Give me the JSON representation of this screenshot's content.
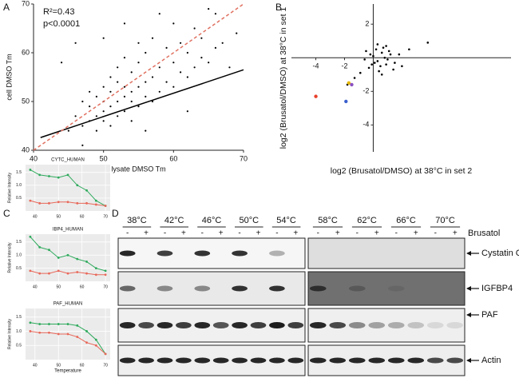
{
  "panel_labels": [
    "A",
    "B",
    "C",
    "D"
  ],
  "chart_data": [
    {
      "type": "scatter",
      "annotations": [
        "R²=0.43",
        "p<0.0001"
      ],
      "x_label": "lysate DMSO Tm",
      "y_label": "cell DMSO Tm",
      "xlim": [
        40,
        70
      ],
      "ylim": [
        40,
        70
      ],
      "xticks": [
        40,
        50,
        60,
        70
      ],
      "yticks": [
        40,
        50,
        60,
        70
      ],
      "series": [
        {
          "color": "#000000",
          "x": [
            45,
            46,
            47,
            47,
            48,
            48,
            48,
            49,
            49,
            49,
            50,
            50,
            50,
            50,
            51,
            51,
            51,
            51,
            52,
            52,
            52,
            52,
            53,
            53,
            53,
            53,
            54,
            54,
            54,
            54,
            55,
            55,
            55,
            55,
            56,
            56,
            56,
            57,
            57,
            57,
            58,
            58,
            59,
            59,
            60,
            60,
            60,
            61,
            61,
            62,
            62,
            63,
            63,
            64,
            64,
            65,
            66,
            66,
            67,
            68,
            69,
            44,
            46,
            50,
            53,
            47,
            56,
            62,
            65,
            58
          ],
          "values": [
            44,
            47,
            45,
            50,
            46,
            49,
            52,
            44,
            47,
            51,
            46,
            48,
            50,
            53,
            45,
            49,
            52,
            55,
            47,
            50,
            54,
            57,
            48,
            51,
            53,
            59,
            46,
            50,
            52,
            56,
            49,
            53,
            58,
            62,
            51,
            54,
            60,
            50,
            55,
            63,
            52,
            57,
            54,
            61,
            53,
            58,
            66,
            56,
            62,
            55,
            60,
            57,
            65,
            59,
            63,
            58,
            61,
            68,
            62,
            57,
            64,
            58,
            62,
            63,
            66,
            41,
            44,
            48,
            69,
            68
          ]
        }
      ],
      "fit_line": {
        "x": [
          41,
          70
        ],
        "y": [
          42.6,
          56.5
        ],
        "color": "#000000"
      },
      "identity_line": {
        "x": [
          40,
          70
        ],
        "y": [
          40,
          70
        ],
        "color": "#e07060",
        "dashed": true
      }
    },
    {
      "type": "scatter",
      "x_label": "log2 (Brusatol/DMSO) at 38°C in set 2",
      "y_label": "log2 (Brusatol/DMSO) at 38°C in set 1",
      "axes_cross_at_zero": true,
      "xlim": [
        -5.7,
        9.6
      ],
      "ylim": [
        -5.6,
        3.2
      ],
      "xticks": [
        -4,
        -2
      ],
      "yticks": [
        2,
        -2,
        -4
      ],
      "series": [
        {
          "color": "#000000",
          "x": [
            0,
            0.3,
            0.6,
            0.9,
            1.2,
            -0.3,
            -0.6,
            0.2,
            0.5,
            0.8,
            1.1,
            1.5,
            -0.2,
            0.4,
            0.7,
            1.0,
            0.1,
            -0.9,
            -1.3,
            1.8,
            2.5,
            3.8,
            0.6,
            -0.5,
            0.3,
            1.4,
            -1.8,
            0.9,
            -0.1,
            2.0
          ],
          "values": [
            0.1,
            -0.2,
            0.3,
            -0.4,
            0.2,
            -0.6,
            -0.1,
            0.5,
            -0.5,
            0.0,
            0.4,
            -0.3,
            0.2,
            -0.8,
            0.6,
            -0.1,
            -0.3,
            -0.9,
            -1.2,
            0.2,
            0.5,
            0.9,
            -1.0,
            0.4,
            0.8,
            -0.7,
            -1.6,
            0.7,
            -0.4,
            -0.5
          ]
        },
        {
          "color": "#e8402a",
          "x": [
            -4
          ],
          "values": [
            -2.3
          ]
        },
        {
          "color": "#3a5fcd",
          "x": [
            -1.9
          ],
          "values": [
            -2.6
          ]
        },
        {
          "color": "#e6b800",
          "x": [
            -1.7
          ],
          "values": [
            -1.5
          ]
        },
        {
          "color": "#8a4fc0",
          "x": [
            -1.5
          ],
          "values": [
            -1.6
          ]
        }
      ]
    },
    {
      "type": "line",
      "title": "CYTC_HUMAN",
      "y_label": "Relative Intensity",
      "x": [
        38,
        42,
        46,
        50,
        54,
        58,
        62,
        66,
        70
      ],
      "xlim": [
        36,
        72
      ],
      "ylim": [
        0,
        1.8
      ],
      "xticks": [
        40,
        50,
        60,
        70
      ],
      "yticks": [
        0.5,
        {
          "value": 1,
          "label": "1.0"
        },
        1.5
      ],
      "series": [
        {
          "color": "#2eaa5c",
          "values": [
            1.6,
            1.4,
            1.35,
            1.3,
            1.4,
            1.0,
            0.8,
            0.4,
            0.2
          ]
        },
        {
          "color": "#e8685a",
          "values": [
            0.4,
            0.3,
            0.3,
            0.35,
            0.35,
            0.3,
            0.3,
            0.25,
            0.2
          ]
        }
      ]
    },
    {
      "type": "line",
      "title": "IBP4_HUMAN",
      "y_label": "Relative Intensity",
      "x": [
        38,
        42,
        46,
        50,
        54,
        58,
        62,
        66,
        70
      ],
      "xlim": [
        36,
        72
      ],
      "ylim": [
        0,
        1.8
      ],
      "xticks": [
        40,
        50,
        60,
        70
      ],
      "yticks": [
        0.5,
        {
          "value": 1,
          "label": "1.0"
        },
        1.5
      ],
      "series": [
        {
          "color": "#2eaa5c",
          "values": [
            1.7,
            1.3,
            1.2,
            0.9,
            1.0,
            0.85,
            0.75,
            0.5,
            0.4
          ]
        },
        {
          "color": "#e8685a",
          "values": [
            0.4,
            0.3,
            0.3,
            0.4,
            0.3,
            0.35,
            0.3,
            0.25,
            0.25
          ]
        }
      ]
    },
    {
      "type": "line",
      "title": "PAF_HUMAN",
      "y_label": "Relative Intensity",
      "x_label": "Temperature",
      "x": [
        38,
        42,
        46,
        50,
        54,
        58,
        62,
        66,
        70
      ],
      "xlim": [
        36,
        72
      ],
      "ylim": [
        0,
        1.8
      ],
      "xticks": [
        40,
        50,
        60,
        70
      ],
      "yticks": [
        0.5,
        {
          "value": 1,
          "label": "1.0"
        },
        1.5
      ],
      "series": [
        {
          "color": "#2eaa5c",
          "values": [
            1.3,
            1.25,
            1.25,
            1.25,
            1.25,
            1.2,
            1.0,
            0.7,
            0.2
          ]
        },
        {
          "color": "#e8685a",
          "values": [
            1.0,
            0.95,
            0.95,
            0.9,
            0.9,
            0.8,
            0.6,
            0.5,
            0.2
          ]
        }
      ]
    }
  ],
  "blot": {
    "temperatures": [
      "38°C",
      "42°C",
      "46°C",
      "50°C",
      "54°C",
      "58°C",
      "62°C",
      "66°C",
      "70°C"
    ],
    "treatments": [
      "-",
      "+"
    ],
    "treatment_label": "Brusatol",
    "proteins": [
      "Cystatin C",
      "IGFBP4",
      "PAF",
      "Actin"
    ]
  }
}
